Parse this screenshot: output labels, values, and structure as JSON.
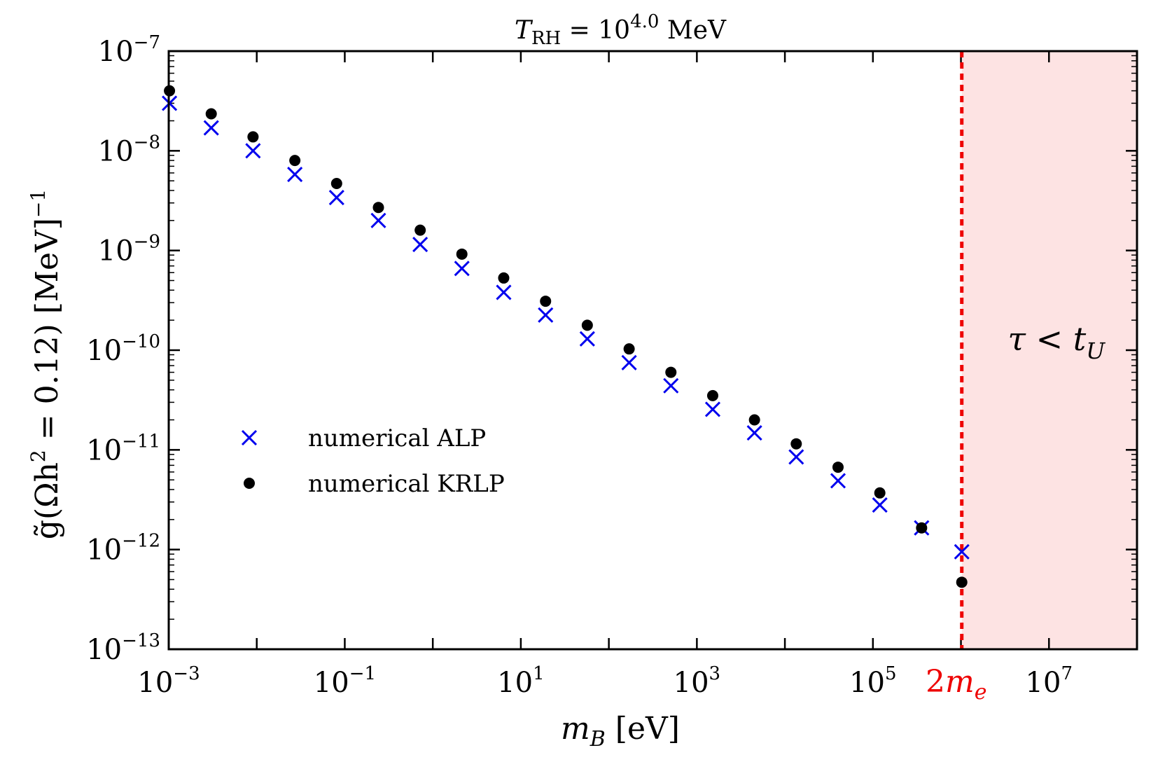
{
  "chart_data": {
    "type": "scatter",
    "title": "T_RH = 10^4.0 MeV",
    "title_parts": {
      "symbol": "T",
      "subscript": "RH",
      "equals": " = 10",
      "exponent": "4.0",
      "unit": " MeV"
    },
    "xlabel": "m_B [eV]",
    "xlabel_parts": {
      "symbol": "m",
      "subscript": "B",
      "unit": " [eV]"
    },
    "ylabel": "g̃(Ωh² = 0.12) [MeV]⁻¹",
    "ylabel_parts": {
      "text": "g̃(Ωh",
      "sup1": "2",
      "mid": " = 0.12) [MeV]",
      "sup2": "−1"
    },
    "xscale": "log",
    "yscale": "log",
    "xlim": [
      0.001,
      100000000
    ],
    "ylim": [
      1e-13,
      1e-07
    ],
    "x_ticks": [
      {
        "value": 0.001,
        "base": "10",
        "exp": "−3"
      },
      {
        "value": 0.1,
        "base": "10",
        "exp": "−1"
      },
      {
        "value": 10,
        "base": "10",
        "exp": "1"
      },
      {
        "value": 1000,
        "base": "10",
        "exp": "3"
      },
      {
        "value": 100000,
        "base": "10",
        "exp": "5"
      },
      {
        "value": 10000000,
        "base": "10",
        "exp": "7"
      }
    ],
    "y_ticks": [
      {
        "value": 1e-07,
        "base": "10",
        "exp": "−7"
      },
      {
        "value": 1e-08,
        "base": "10",
        "exp": "−8"
      },
      {
        "value": 1e-09,
        "base": "10",
        "exp": "−9"
      },
      {
        "value": 1e-10,
        "base": "10",
        "exp": "−10"
      },
      {
        "value": 1e-11,
        "base": "10",
        "exp": "−11"
      },
      {
        "value": 1e-12,
        "base": "10",
        "exp": "−12"
      },
      {
        "value": 1e-13,
        "base": "10",
        "exp": "−13"
      }
    ],
    "series": [
      {
        "name": "numerical ALP",
        "marker": "x",
        "color": "#0000ee",
        "x": [
          0.00102,
          0.00304,
          0.00907,
          0.0271,
          0.0808,
          0.241,
          0.719,
          2.14,
          6.39,
          19.1,
          56.9,
          170,
          507,
          1513,
          4513,
          13460,
          40150,
          119800,
          357300,
          1022000
        ],
        "y": [
          3e-08,
          1.7e-08,
          1e-08,
          5.8e-09,
          3.4e-09,
          2e-09,
          1.15e-09,
          6.6e-10,
          3.8e-10,
          2.25e-10,
          1.3e-10,
          7.5e-11,
          4.4e-11,
          2.55e-11,
          1.48e-11,
          8.5e-12,
          4.9e-12,
          2.8e-12,
          1.65e-12,
          9.5e-13
        ]
      },
      {
        "name": "numerical KRLP",
        "marker": "o",
        "color": "#000000",
        "x": [
          0.00102,
          0.00304,
          0.00907,
          0.0271,
          0.0808,
          0.241,
          0.719,
          2.14,
          6.39,
          19.1,
          56.9,
          170,
          507,
          1513,
          4513,
          13460,
          40150,
          119800,
          357300,
          1022000
        ],
        "y": [
          4e-08,
          2.35e-08,
          1.38e-08,
          8e-09,
          4.7e-09,
          2.7e-09,
          1.6e-09,
          9.2e-10,
          5.3e-10,
          3.1e-10,
          1.78e-10,
          1.03e-10,
          6e-11,
          3.5e-11,
          2e-11,
          1.15e-11,
          6.7e-12,
          3.7e-12,
          1.65e-12,
          4.7e-13
        ]
      }
    ],
    "threshold": {
      "x": 1022000,
      "label": "2m_e",
      "label_parts": {
        "coef": "2",
        "symbol": "m",
        "subscript": "e"
      },
      "color": "#ee0000"
    },
    "shaded_region": {
      "x_from": 1022000,
      "x_to": 100000000,
      "color": "#fde3e3",
      "label": "τ < t_U",
      "label_parts": {
        "lhs": "τ < ",
        "symbol": "t",
        "subscript": "U"
      }
    },
    "legend": {
      "position": "center-left",
      "entries": [
        "numerical ALP",
        "numerical KRLP"
      ]
    },
    "grid": false
  }
}
